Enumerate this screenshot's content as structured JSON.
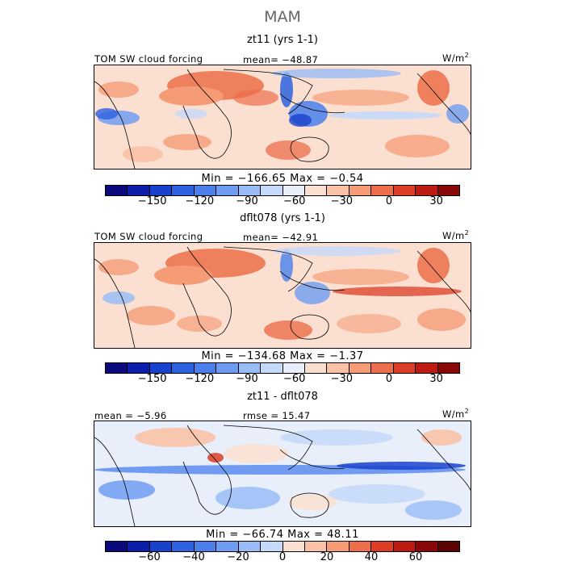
{
  "figure": {
    "season": "MAM",
    "units": "W/m",
    "units_sup": "2"
  },
  "chart_data": [
    {
      "type": "heatmap",
      "title": "zt11 (yrs 1-1)",
      "field_label": "TOM SW cloud forcing",
      "mean_text": "mean= −48.87",
      "min_max_text": "Min = −166.65  Max =  −0.54",
      "min": -166.65,
      "max": -0.54,
      "mean": -48.87,
      "colorbar": {
        "ticks": [
          "−150",
          "−120",
          "−90",
          "−60",
          "−30",
          "0",
          "30"
        ],
        "levels": [
          -180,
          -165,
          -150,
          -135,
          -120,
          -105,
          -90,
          -75,
          -60,
          -45,
          -30,
          -15,
          0,
          15,
          30,
          45
        ],
        "colors": [
          "#0a0a7d",
          "#0c1fab",
          "#1942cc",
          "#2d62e0",
          "#4a7fec",
          "#6e9cf2",
          "#99bcf7",
          "#c5dafb",
          "#e8eefa",
          "#fbe0d2",
          "#f9c2a6",
          "#f59c77",
          "#ec6e4a",
          "#dc3e25",
          "#bd1a12",
          "#8a0707"
        ]
      }
    },
    {
      "type": "heatmap",
      "title": "dflt078 (yrs 1-1)",
      "field_label": "TOM SW cloud forcing",
      "mean_text": "mean= −42.91",
      "min_max_text": "Min = −134.68  Max =  −1.37",
      "min": -134.68,
      "max": -1.37,
      "mean": -42.91,
      "colorbar": {
        "ticks": [
          "−150",
          "−120",
          "−90",
          "−60",
          "−30",
          "0",
          "30"
        ],
        "levels": [
          -180,
          -165,
          -150,
          -135,
          -120,
          -105,
          -90,
          -75,
          -60,
          -45,
          -30,
          -15,
          0,
          15,
          30,
          45
        ],
        "colors": [
          "#0a0a7d",
          "#0c1fab",
          "#1942cc",
          "#2d62e0",
          "#4a7fec",
          "#6e9cf2",
          "#99bcf7",
          "#c5dafb",
          "#e8eefa",
          "#fbe0d2",
          "#f9c2a6",
          "#f59c77",
          "#ec6e4a",
          "#dc3e25",
          "#bd1a12",
          "#8a0707"
        ]
      }
    },
    {
      "type": "heatmap",
      "title": "zt11 - dflt078",
      "mean_text": "mean =  −5.96",
      "rmse_text": "rmse =  15.47",
      "min_max_text": "Min = −66.74  Max =  48.11",
      "min": -66.74,
      "max": 48.11,
      "mean": -5.96,
      "rmse": 15.47,
      "colorbar": {
        "ticks": [
          "−60",
          "−40",
          "−20",
          "0",
          "20",
          "40",
          "60"
        ],
        "levels": [
          -80,
          -70,
          -60,
          -50,
          -40,
          -30,
          -20,
          -10,
          0,
          10,
          20,
          30,
          40,
          50,
          60,
          70,
          80
        ],
        "colors": [
          "#0a0a7d",
          "#0c1fab",
          "#1942cc",
          "#2d62e0",
          "#4a7fec",
          "#6e9cf2",
          "#99bcf7",
          "#c5dafb",
          "#fbe0d2",
          "#f9c2a6",
          "#f59c77",
          "#ec6e4a",
          "#dc3e25",
          "#bd1a12",
          "#8a0707",
          "#5c0303"
        ]
      }
    }
  ]
}
